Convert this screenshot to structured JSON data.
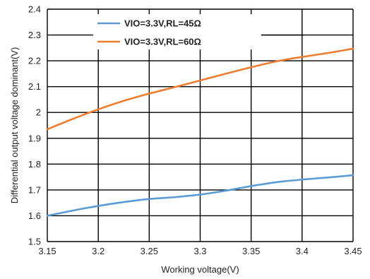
{
  "chart_data": {
    "type": "line",
    "title": "",
    "xlabel": "Working voltage(V)",
    "ylabel": "Differential output voltage dominant(V)",
    "xlim": [
      3.15,
      3.45
    ],
    "ylim": [
      1.5,
      2.4
    ],
    "x_ticks": [
      "3.15",
      "3.2",
      "3.25",
      "3.3",
      "3.35",
      "3.4",
      "3.45"
    ],
    "y_ticks": [
      "1.5",
      "1.6",
      "1.7",
      "1.8",
      "1.9",
      "2",
      "2.1",
      "2.2",
      "2.3",
      "2.4"
    ],
    "grid": true,
    "legend_position": "top-right",
    "series": [
      {
        "name": "VIO=3.3V,RL=45Ω",
        "color": "#5b9bd5",
        "points": [
          [
            3.15,
            1.6
          ],
          [
            3.175,
            1.62
          ],
          [
            3.2,
            1.638
          ],
          [
            3.225,
            1.653
          ],
          [
            3.25,
            1.665
          ],
          [
            3.275,
            1.672
          ],
          [
            3.3,
            1.682
          ],
          [
            3.325,
            1.697
          ],
          [
            3.35,
            1.715
          ],
          [
            3.375,
            1.73
          ],
          [
            3.4,
            1.74
          ],
          [
            3.425,
            1.748
          ],
          [
            3.45,
            1.757
          ]
        ]
      },
      {
        "name": "VIO=3.3V,RL=60Ω",
        "color": "#ed7d31",
        "points": [
          [
            3.15,
            1.935
          ],
          [
            3.175,
            1.975
          ],
          [
            3.2,
            2.012
          ],
          [
            3.225,
            2.045
          ],
          [
            3.25,
            2.073
          ],
          [
            3.275,
            2.098
          ],
          [
            3.3,
            2.124
          ],
          [
            3.325,
            2.15
          ],
          [
            3.35,
            2.175
          ],
          [
            3.375,
            2.198
          ],
          [
            3.4,
            2.215
          ],
          [
            3.425,
            2.23
          ],
          [
            3.45,
            2.247
          ]
        ]
      }
    ]
  }
}
